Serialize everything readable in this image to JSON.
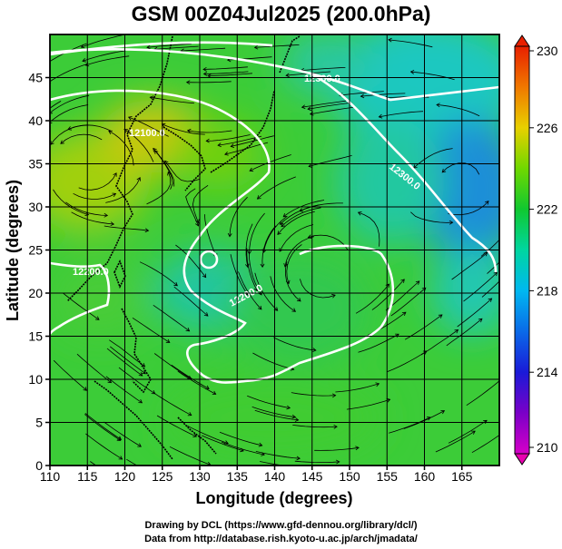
{
  "title": "GSM 00Z04Jul2025 (200.0hPa)",
  "xlabel": "Longitude (degrees)",
  "ylabel": "Latitude (degrees)",
  "x_ticks": [
    110,
    115,
    120,
    125,
    130,
    135,
    140,
    145,
    150,
    155,
    160,
    165
  ],
  "y_ticks": [
    0,
    5,
    10,
    15,
    20,
    25,
    30,
    35,
    40,
    45
  ],
  "colorbar": {
    "labels": [
      "210",
      "214",
      "218",
      "222",
      "226",
      "230"
    ],
    "min": 210,
    "max": 230
  },
  "contour_labels": [
    "12300.0",
    "12300.0",
    "12200.0",
    "12200.0",
    "12100.0"
  ],
  "credit_line1": "Drawing by DCL (https://www.gfd-dennou.org/library/dcl/)",
  "credit_line2": "Data from http://database.rish.kyoto-u.ac.jp/arch/jmadata/",
  "chart_data": {
    "type": "heatmap",
    "title": "GSM 00Z04Jul2025 (200.0hPa)",
    "xlabel": "Longitude (degrees)",
    "ylabel": "Latitude (degrees)",
    "xlim": [
      110,
      170
    ],
    "ylim": [
      0,
      50
    ],
    "colorbar_range": [
      210,
      230
    ],
    "colorbar_ticks": [
      210,
      214,
      218,
      222,
      226,
      230
    ],
    "contour_levels_gpm": [
      12100,
      12200,
      12300
    ],
    "field_samples": [
      {
        "lon": 115,
        "lat": 35,
        "value": 224
      },
      {
        "lon": 122,
        "lat": 42,
        "value": 226
      },
      {
        "lon": 112,
        "lat": 45,
        "value": 221
      },
      {
        "lon": 140,
        "lat": 30,
        "value": 221
      },
      {
        "lon": 145,
        "lat": 20,
        "value": 221
      },
      {
        "lon": 150,
        "lat": 42,
        "value": 219
      },
      {
        "lon": 163,
        "lat": 35,
        "value": 217
      },
      {
        "lon": 167,
        "lat": 25,
        "value": 219
      },
      {
        "lon": 130,
        "lat": 23,
        "value": 219
      },
      {
        "lon": 125,
        "lat": 8,
        "value": 221
      }
    ],
    "anticyclone_centers": [
      {
        "lon": 114,
        "lat": 35
      },
      {
        "lon": 146,
        "lat": 22
      },
      {
        "lon": 166,
        "lat": 33
      }
    ]
  }
}
